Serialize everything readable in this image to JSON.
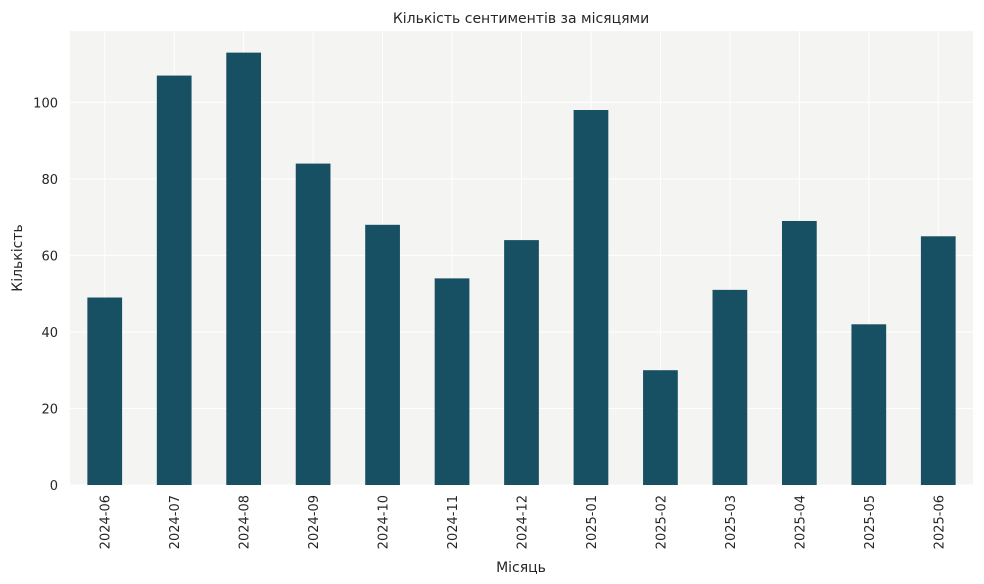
{
  "chart_data": {
    "type": "bar",
    "title": "Кількість сентиментів за місяцями",
    "xlabel": "Місяць",
    "ylabel": "Кількість",
    "categories": [
      "2024-06",
      "2024-07",
      "2024-08",
      "2024-09",
      "2024-10",
      "2024-11",
      "2024-12",
      "2025-01",
      "2025-02",
      "2025-03",
      "2025-04",
      "2025-05",
      "2025-06"
    ],
    "values": [
      49,
      107,
      113,
      84,
      68,
      54,
      64,
      98,
      30,
      51,
      69,
      42,
      65
    ],
    "ylim": [
      0,
      118.65
    ],
    "yticks": [
      0,
      20,
      40,
      60,
      80,
      100
    ],
    "grid": true,
    "colors": {
      "bar": "#174f63",
      "plot_bg": "#f4f4f3",
      "grid": "#ffffff"
    }
  }
}
